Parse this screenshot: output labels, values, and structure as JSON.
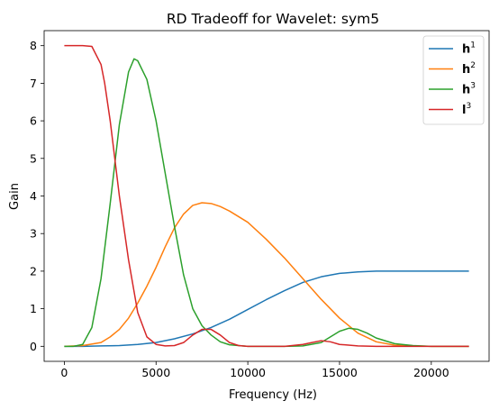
{
  "chart_data": {
    "type": "line",
    "title": "RD Tradeoff for Wavelet: sym5",
    "xlabel": "Frequency (Hz)",
    "ylabel": "Gain",
    "xlim": [
      -1100,
      23150
    ],
    "ylim": [
      -0.4,
      8.4
    ],
    "xticks": [
      0,
      5000,
      10000,
      15000,
      20000
    ],
    "xtick_labels": [
      "0",
      "5000",
      "10000",
      "15000",
      "20000"
    ],
    "yticks": [
      0,
      1,
      2,
      3,
      4,
      5,
      6,
      7,
      8
    ],
    "ytick_labels": [
      "0",
      "1",
      "2",
      "3",
      "4",
      "5",
      "6",
      "7",
      "8"
    ],
    "grid": false,
    "legend_position": "top-right",
    "series": [
      {
        "name": "h1",
        "legend_base": "h",
        "legend_sup": "1",
        "legend_bold": true,
        "color": "#1f77b4",
        "x": [
          0,
          1000,
          2000,
          3000,
          4000,
          5000,
          6000,
          7000,
          8000,
          9000,
          10000,
          11000,
          12000,
          13000,
          14000,
          15000,
          16000,
          17000,
          18000,
          19000,
          20000,
          21000,
          22050
        ],
        "y": [
          0,
          0,
          0.01,
          0.02,
          0.05,
          0.1,
          0.2,
          0.33,
          0.5,
          0.72,
          0.98,
          1.24,
          1.48,
          1.7,
          1.85,
          1.94,
          1.98,
          2.0,
          2.0,
          2.0,
          2.0,
          2.0,
          2.0
        ]
      },
      {
        "name": "h2",
        "legend_base": "h",
        "legend_sup": "2",
        "legend_bold": true,
        "color": "#ff7f0e",
        "x": [
          0,
          1000,
          2000,
          2500,
          3000,
          3500,
          4000,
          4500,
          5000,
          5500,
          6000,
          6500,
          7000,
          7500,
          8000,
          8500,
          9000,
          10000,
          11000,
          12000,
          13000,
          14000,
          15000,
          16000,
          17000,
          18000,
          19000,
          20000,
          21000,
          22050
        ],
        "y": [
          0,
          0.02,
          0.1,
          0.25,
          0.45,
          0.75,
          1.15,
          1.6,
          2.1,
          2.65,
          3.15,
          3.52,
          3.75,
          3.82,
          3.8,
          3.72,
          3.6,
          3.3,
          2.85,
          2.35,
          1.8,
          1.25,
          0.75,
          0.35,
          0.12,
          0.03,
          0.01,
          0,
          0,
          0
        ]
      },
      {
        "name": "h3",
        "legend_base": "h",
        "legend_sup": "3",
        "legend_bold": true,
        "color": "#2ca02c",
        "x": [
          0,
          500,
          1000,
          1500,
          2000,
          2500,
          3000,
          3500,
          3800,
          4000,
          4500,
          5000,
          5500,
          6000,
          6500,
          7000,
          7500,
          8000,
          8500,
          9000,
          10000,
          11000,
          12000,
          13000,
          14000,
          14500,
          15000,
          15500,
          16000,
          16500,
          17000,
          18000,
          19000,
          20000,
          21000,
          22050
        ],
        "y": [
          0,
          0,
          0.05,
          0.5,
          1.8,
          3.8,
          5.9,
          7.3,
          7.65,
          7.6,
          7.1,
          6.0,
          4.6,
          3.2,
          1.9,
          1.0,
          0.55,
          0.3,
          0.12,
          0.04,
          0,
          0,
          0,
          0.01,
          0.1,
          0.25,
          0.4,
          0.48,
          0.45,
          0.35,
          0.22,
          0.07,
          0.02,
          0,
          0,
          0
        ]
      },
      {
        "name": "l3",
        "legend_base": "l",
        "legend_sup": "3",
        "legend_bold": true,
        "color": "#d62728",
        "x": [
          0,
          500,
          1000,
          1500,
          2000,
          2200,
          2500,
          3000,
          3500,
          4000,
          4500,
          5000,
          5500,
          6000,
          6500,
          7000,
          7500,
          8000,
          8500,
          9000,
          9500,
          10000,
          11000,
          12000,
          13000,
          13500,
          14000,
          14500,
          15000,
          16000,
          17000,
          18000,
          19000,
          20000,
          21000,
          22050
        ],
        "y": [
          8,
          8,
          8,
          7.98,
          7.5,
          7.0,
          6.0,
          4.0,
          2.3,
          0.9,
          0.25,
          0.05,
          0.01,
          0.02,
          0.1,
          0.3,
          0.45,
          0.45,
          0.3,
          0.1,
          0.02,
          0,
          0,
          0,
          0.05,
          0.1,
          0.15,
          0.12,
          0.05,
          0.01,
          0,
          0,
          0,
          0,
          0,
          0
        ]
      }
    ]
  }
}
